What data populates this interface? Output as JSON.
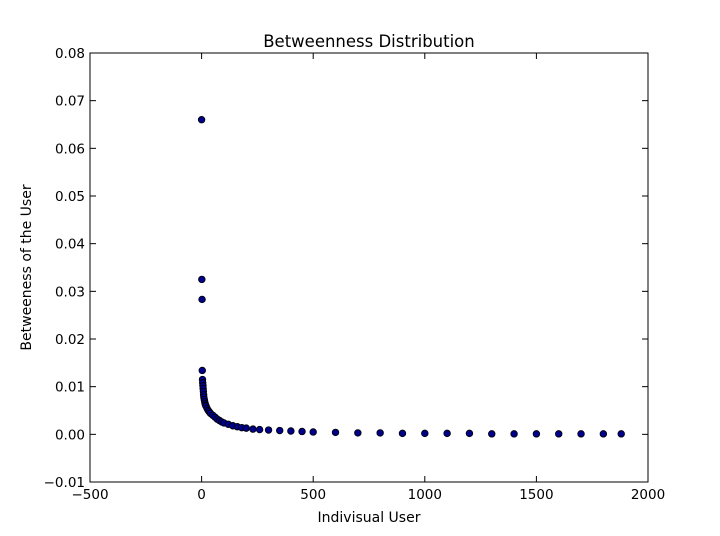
{
  "chart_data": {
    "type": "scatter",
    "title": "Betweenness Distribution",
    "xlabel": "Indivisual User",
    "ylabel": "Betweeness of the User",
    "xlim": [
      -500,
      2000
    ],
    "ylim": [
      -0.01,
      0.08
    ],
    "x_ticks": [
      -500,
      0,
      500,
      1000,
      1500,
      2000
    ],
    "x_tick_labels": [
      "−500",
      "0",
      "500",
      "1000",
      "1500",
      "2000"
    ],
    "y_ticks": [
      -0.01,
      0.0,
      0.01,
      0.02,
      0.03,
      0.04,
      0.05,
      0.06,
      0.07,
      0.08
    ],
    "y_tick_labels": [
      "−0.01",
      "0.00",
      "0.01",
      "0.02",
      "0.03",
      "0.04",
      "0.05",
      "0.06",
      "0.07",
      "0.08"
    ],
    "grid": false,
    "legend": "none",
    "marker_color": "#00008b",
    "marker_edge_color": "#000000",
    "series": [
      {
        "x": [
          0,
          1,
          2,
          3,
          4,
          5,
          6,
          7,
          8,
          9,
          10,
          12,
          14,
          16,
          18,
          20,
          25,
          30,
          35,
          40,
          50,
          60,
          70,
          80,
          90,
          100,
          120,
          140,
          160,
          180,
          200,
          230,
          260,
          300,
          350,
          400,
          450,
          500,
          600,
          700,
          800,
          900,
          1000,
          1100,
          1200,
          1300,
          1400,
          1500,
          1600,
          1700,
          1800,
          1880
        ],
        "y": [
          0.066,
          0.0325,
          0.0283,
          0.0134,
          0.0115,
          0.0108,
          0.0102,
          0.0096,
          0.009,
          0.0083,
          0.0078,
          0.0073,
          0.0068,
          0.0064,
          0.0061,
          0.0059,
          0.0054,
          0.005,
          0.0047,
          0.0044,
          0.004,
          0.0036,
          0.0032,
          0.0029,
          0.0026,
          0.0024,
          0.0021,
          0.0018,
          0.0016,
          0.0014,
          0.0013,
          0.0011,
          0.001,
          0.0009,
          0.0008,
          0.0007,
          0.0006,
          0.0005,
          0.0004,
          0.0003,
          0.0003,
          0.0002,
          0.0002,
          0.0002,
          0.0002,
          0.0001,
          0.0001,
          0.0001,
          0.0001,
          0.0001,
          0.0001,
          0.0001
        ]
      }
    ]
  }
}
